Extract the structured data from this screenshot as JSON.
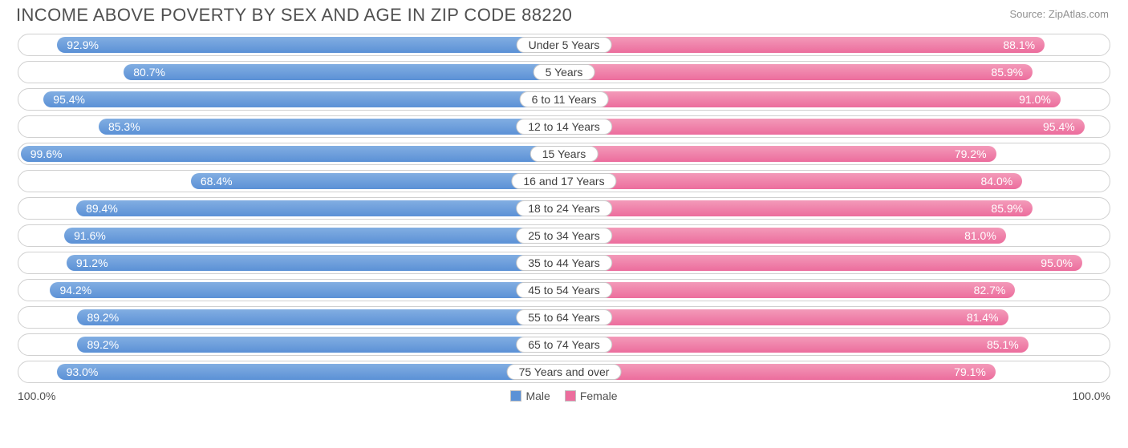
{
  "title": "INCOME ABOVE POVERTY BY SEX AND AGE IN ZIP CODE 88220",
  "source": "Source: ZipAtlas.com",
  "axis": {
    "left": "100.0%",
    "right": "100.0%"
  },
  "legend": {
    "male": {
      "label": "Male",
      "color": "#5b91d6"
    },
    "female": {
      "label": "Female",
      "color": "#ec6d9d"
    }
  },
  "colors": {
    "male_top": "#82aee2",
    "male_bot": "#5b91d6",
    "female_top": "#f39ab9",
    "female_bot": "#ec6d9d",
    "row_border": "#d0d0d0",
    "text": "#505050"
  },
  "chart": {
    "type": "diverging-bar",
    "max": 100.0,
    "rows": [
      {
        "category": "Under 5 Years",
        "male": 92.9,
        "female": 88.1
      },
      {
        "category": "5 Years",
        "male": 80.7,
        "female": 85.9
      },
      {
        "category": "6 to 11 Years",
        "male": 95.4,
        "female": 91.0
      },
      {
        "category": "12 to 14 Years",
        "male": 85.3,
        "female": 95.4
      },
      {
        "category": "15 Years",
        "male": 99.6,
        "female": 79.2
      },
      {
        "category": "16 and 17 Years",
        "male": 68.4,
        "female": 84.0
      },
      {
        "category": "18 to 24 Years",
        "male": 89.4,
        "female": 85.9
      },
      {
        "category": "25 to 34 Years",
        "male": 91.6,
        "female": 81.0
      },
      {
        "category": "35 to 44 Years",
        "male": 91.2,
        "female": 95.0
      },
      {
        "category": "45 to 54 Years",
        "male": 94.2,
        "female": 82.7
      },
      {
        "category": "55 to 64 Years",
        "male": 89.2,
        "female": 81.4
      },
      {
        "category": "65 to 74 Years",
        "male": 89.2,
        "female": 85.1
      },
      {
        "category": "75 Years and over",
        "male": 93.0,
        "female": 79.1
      }
    ]
  }
}
